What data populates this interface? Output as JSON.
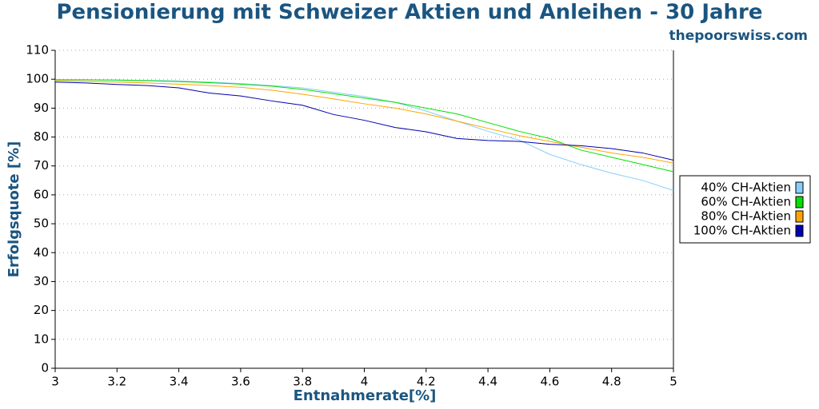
{
  "chart_data": {
    "type": "line",
    "title": "Pensionierung mit Schweizer Aktien und Anleihen - 30 Jahre",
    "subtitle": "thepoorswiss.com",
    "x_label": "Entnahmerate[%]",
    "y_label": "Erfolgsquote [%]",
    "x": [
      3,
      3.1,
      3.2,
      3.3,
      3.4,
      3.5,
      3.6,
      3.7,
      3.8,
      3.9,
      4,
      4.1,
      4.2,
      4.3,
      4.4,
      4.5,
      4.6,
      4.7,
      4.8,
      4.9,
      5
    ],
    "series": [
      {
        "name": "40% CH-Aktien",
        "color": "#87cefa",
        "values": [
          99.8,
          99.8,
          99.7,
          99.6,
          99.4,
          99,
          98.5,
          97.8,
          97,
          95.5,
          94,
          92,
          89,
          85.5,
          82,
          79,
          74,
          70.5,
          67.5,
          65,
          61.5
        ]
      },
      {
        "name": "60% CH-Aktien",
        "color": "#00e000",
        "values": [
          99.8,
          99.8,
          99.7,
          99.5,
          99.2,
          98.8,
          98.3,
          97.6,
          96.5,
          95,
          93.5,
          92,
          90,
          88,
          85,
          82,
          79.5,
          75.5,
          73,
          70.5,
          68
        ]
      },
      {
        "name": "80% CH-Aktien",
        "color": "#ffa500",
        "values": [
          99.5,
          99.3,
          99,
          98.7,
          98.3,
          97.8,
          97.2,
          96.2,
          94.8,
          93.2,
          91.5,
          90,
          88,
          85.5,
          83,
          80.5,
          78.5,
          76.5,
          74.5,
          73,
          71
        ]
      },
      {
        "name": "100% CH-Aktien",
        "color": "#0000b0",
        "values": [
          99,
          98.7,
          98.2,
          97.8,
          97,
          95.2,
          94.2,
          92.5,
          91,
          87.8,
          85.8,
          83.3,
          81.8,
          79.5,
          78.8,
          78.5,
          77.5,
          77,
          76,
          74.5,
          72
        ]
      }
    ],
    "xlim": [
      3,
      5
    ],
    "xticks": [
      3,
      3.2,
      3.4,
      3.6,
      3.8,
      4,
      4.2,
      4.4,
      4.6,
      4.8,
      5
    ],
    "ylim": [
      0,
      110
    ],
    "yticks": [
      0,
      10,
      20,
      30,
      40,
      50,
      60,
      70,
      80,
      90,
      100,
      110
    ],
    "grid": true,
    "legend": "right"
  }
}
